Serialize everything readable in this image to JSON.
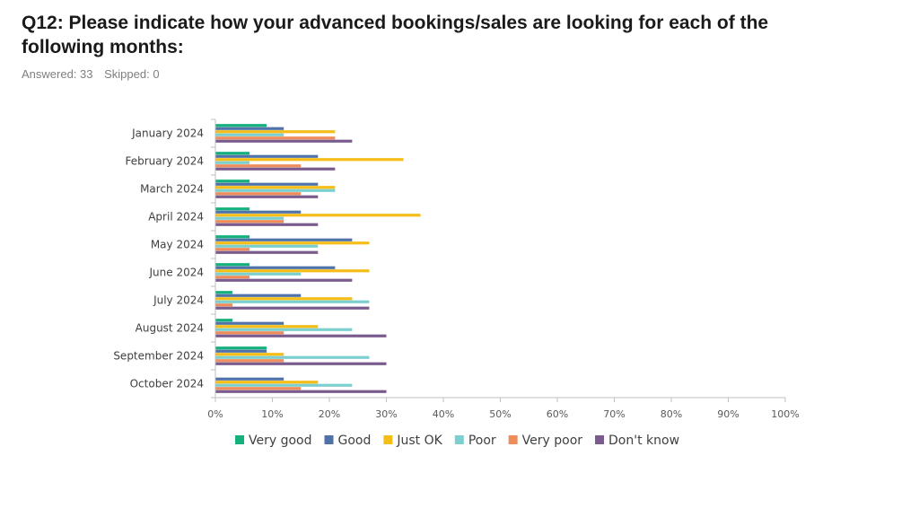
{
  "header": {
    "title": "Q12: Please indicate how your advanced bookings/sales are looking for each of the following months:",
    "answered": "Answered: 33",
    "skipped": "Skipped: 0"
  },
  "chart_data": {
    "type": "bar",
    "orientation": "horizontal",
    "categories": [
      "January 2024",
      "February 2024",
      "March 2024",
      "April 2024",
      "May 2024",
      "June 2024",
      "July 2024",
      "August 2024",
      "September 2024",
      "October 2024"
    ],
    "x_ticks": [
      "0%",
      "10%",
      "20%",
      "30%",
      "40%",
      "50%",
      "60%",
      "70%",
      "80%",
      "90%",
      "100%"
    ],
    "xlim": [
      0,
      100
    ],
    "legend_position": "bottom",
    "series": [
      {
        "name": "Very good",
        "color": "#14b17c",
        "values": [
          9,
          6,
          6,
          6,
          6,
          6,
          3,
          3,
          9,
          0
        ]
      },
      {
        "name": "Good",
        "color": "#4f72a8",
        "values": [
          12,
          18,
          18,
          15,
          24,
          21,
          15,
          12,
          9,
          12
        ]
      },
      {
        "name": "Just OK",
        "color": "#f5bd17",
        "values": [
          21,
          33,
          21,
          36,
          27,
          27,
          24,
          18,
          12,
          18
        ]
      },
      {
        "name": "Poor",
        "color": "#7ccfcf",
        "values": [
          12,
          6,
          21,
          12,
          18,
          15,
          27,
          24,
          27,
          24
        ]
      },
      {
        "name": "Very poor",
        "color": "#ee8c5a",
        "values": [
          21,
          15,
          15,
          12,
          6,
          6,
          3,
          12,
          12,
          15
        ]
      },
      {
        "name": "Don't know",
        "color": "#7a5b8e",
        "values": [
          24,
          21,
          18,
          18,
          18,
          24,
          27,
          30,
          30,
          30
        ]
      }
    ]
  }
}
